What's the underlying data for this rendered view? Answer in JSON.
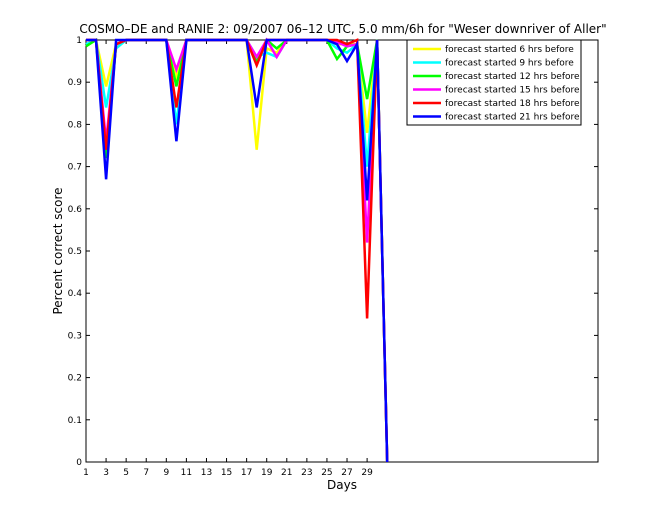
{
  "chart_data": {
    "type": "line",
    "title": "COSMO–DE and RANIE 2: 09/2007 06–12 UTC, 5.0 mm/6h for \"Weser downriver of Aller\"",
    "xlabel": "Days",
    "ylabel": "Percent correct score",
    "xlim": [
      1,
      52
    ],
    "ylim": [
      0,
      1
    ],
    "xticks": [
      1,
      3,
      5,
      7,
      9,
      11,
      13,
      15,
      17,
      19,
      21,
      23,
      25,
      27,
      29
    ],
    "yticks": [
      0,
      0.1,
      0.2,
      0.3,
      0.4,
      0.5,
      0.6,
      0.7,
      0.8,
      0.9,
      1
    ],
    "ytick_labels": [
      "0",
      "0.1",
      "0.2",
      "0.3",
      "0.4",
      "0.5",
      "0.6",
      "0.7",
      "0.8",
      "0.9",
      "1"
    ],
    "grid": false,
    "legend_position": "top-right",
    "x": [
      1,
      2,
      3,
      4,
      5,
      6,
      7,
      8,
      9,
      10,
      11,
      12,
      13,
      14,
      15,
      16,
      17,
      18,
      19,
      20,
      21,
      22,
      23,
      24,
      25,
      26,
      27,
      28,
      29,
      30,
      31
    ],
    "series": [
      {
        "name": "forecast started 6 hrs before",
        "color": "#ffff00",
        "values": [
          1,
          1,
          0.89,
          0.99,
          1,
          1,
          1,
          1,
          1,
          0.91,
          1,
          1,
          1,
          1,
          1,
          1,
          1,
          0.74,
          0.98,
          0.97,
          1,
          1,
          1,
          1,
          1,
          0.99,
          0.99,
          0.99,
          0.78,
          1,
          0
        ]
      },
      {
        "name": "forecast started 9 hrs before",
        "color": "#00ffff",
        "values": [
          0.99,
          1,
          0.84,
          0.98,
          1,
          1,
          1,
          1,
          1,
          0.8,
          1,
          1,
          1,
          1,
          1,
          1,
          1,
          0.96,
          0.97,
          0.96,
          1,
          1,
          1,
          1,
          1,
          0.98,
          0.97,
          0.99,
          0.7,
          1,
          0
        ]
      },
      {
        "name": "forecast started 12 hrs before",
        "color": "#00ff00",
        "values": [
          0.985,
          1,
          0.72,
          0.99,
          1,
          1,
          1,
          1,
          1,
          0.89,
          1,
          1,
          1,
          1,
          1,
          1,
          1,
          0.95,
          1,
          0.98,
          1,
          1,
          1,
          1,
          1,
          0.955,
          0.985,
          0.99,
          0.86,
          1,
          0
        ]
      },
      {
        "name": "forecast started 15 hrs before",
        "color": "#ff00ff",
        "values": [
          1,
          1,
          0.76,
          0.99,
          1,
          1,
          1,
          1,
          1,
          0.93,
          1,
          1,
          1,
          1,
          1,
          1,
          1,
          0.96,
          1,
          0.96,
          1,
          1,
          1,
          1,
          1,
          0.995,
          0.985,
          0.99,
          0.52,
          1,
          0
        ]
      },
      {
        "name": "forecast started 18 hrs before",
        "color": "#ff0000",
        "values": [
          1,
          1,
          0.74,
          0.99,
          1,
          1,
          1,
          1,
          1,
          0.84,
          1,
          1,
          1,
          1,
          1,
          1,
          1,
          0.94,
          1,
          1,
          1,
          1,
          1,
          1,
          1,
          1,
          0.99,
          1,
          0.34,
          1,
          0
        ]
      },
      {
        "name": "forecast started 21 hrs before",
        "color": "#0000ff",
        "values": [
          1,
          1,
          0.67,
          1,
          1,
          1,
          1,
          1,
          1,
          0.76,
          1,
          1,
          1,
          1,
          1,
          1,
          1,
          0.84,
          1,
          1,
          1,
          1,
          1,
          1,
          1,
          0.99,
          0.95,
          0.99,
          0.62,
          1,
          0
        ]
      }
    ]
  }
}
